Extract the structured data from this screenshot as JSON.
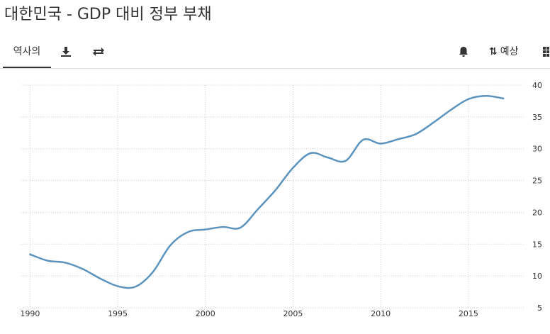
{
  "header": {
    "title": "대한민국 - GDP 대비 정부 부채"
  },
  "toolbar": {
    "tab_history": "역사의",
    "forecast_label": "예상",
    "icons": [
      "download-icon",
      "swap-icon",
      "bell-icon",
      "sort-icon",
      "grid-icon"
    ]
  },
  "colors": {
    "line": "#5b93bf",
    "grid": "#cccccc"
  },
  "chart_data": {
    "type": "line",
    "title": "",
    "xlabel": "",
    "ylabel": "",
    "xlim": [
      1989.5,
      2018.2
    ],
    "ylim": [
      5,
      40
    ],
    "x_ticks": [
      1990,
      1995,
      2000,
      2005,
      2010,
      2015
    ],
    "y_ticks": [
      5,
      10,
      15,
      20,
      25,
      30,
      35,
      40
    ],
    "grid": true,
    "x": [
      1990,
      1991,
      1992,
      1993,
      1994,
      1995,
      1996,
      1997,
      1998,
      1999,
      2000,
      2001,
      2002,
      2003,
      2004,
      2005,
      2006,
      2007,
      2008,
      2009,
      2010,
      2011,
      2012,
      2013,
      2014,
      2015,
      2016,
      2017
    ],
    "values": [
      13.4,
      12.4,
      12.1,
      11.1,
      9.6,
      8.4,
      8.3,
      10.6,
      14.8,
      16.9,
      17.3,
      17.7,
      17.6,
      20.5,
      23.5,
      27.0,
      29.3,
      28.6,
      28.1,
      31.4,
      30.8,
      31.5,
      32.3,
      34.1,
      36.1,
      37.8,
      38.3,
      37.9
    ]
  }
}
